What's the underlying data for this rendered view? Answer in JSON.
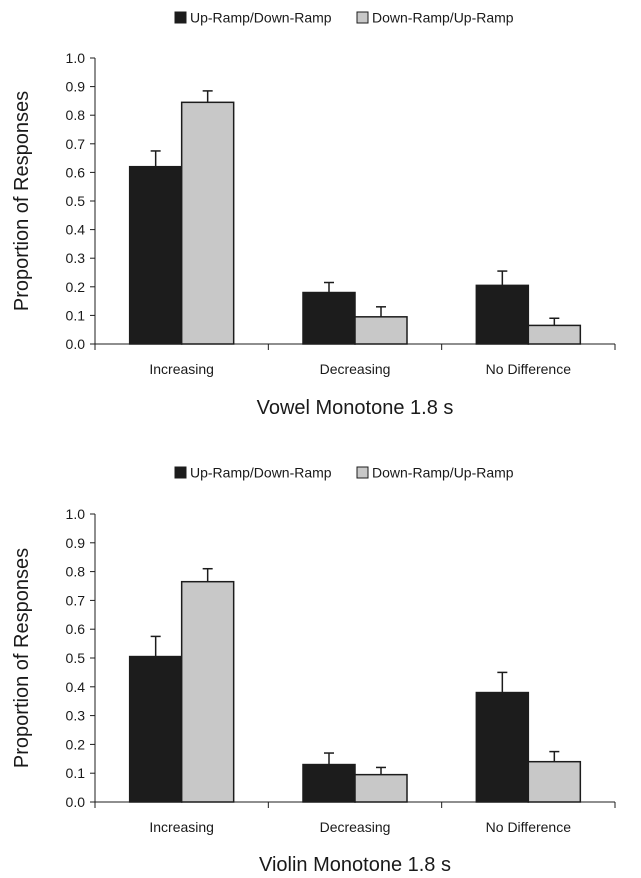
{
  "chart_data": [
    {
      "type": "bar",
      "xlabel": "Vowel Monotone 1.8 s",
      "ylabel": "Proportion of Responses",
      "ylim": [
        0,
        1.0
      ],
      "yticks": [
        "0.0",
        "0.1",
        "0.2",
        "0.3",
        "0.4",
        "0.5",
        "0.6",
        "0.7",
        "0.8",
        "0.9",
        "1.0"
      ],
      "categories": [
        "Increasing",
        "Decreasing",
        "No Difference"
      ],
      "legend_position": "top-center",
      "grid": false,
      "series": [
        {
          "name": "Up-Ramp/Down-Ramp",
          "color": "#1c1c1c",
          "values": [
            0.62,
            0.18,
            0.205
          ],
          "error": [
            0.055,
            0.035,
            0.05
          ]
        },
        {
          "name": "Down-Ramp/Up-Ramp",
          "color": "#c8c8c8",
          "values": [
            0.845,
            0.095,
            0.065
          ],
          "error": [
            0.04,
            0.035,
            0.025
          ]
        }
      ]
    },
    {
      "type": "bar",
      "xlabel": "Violin Monotone 1.8 s",
      "ylabel": "Proportion of Responses",
      "ylim": [
        0,
        1.0
      ],
      "yticks": [
        "0.0",
        "0.1",
        "0.2",
        "0.3",
        "0.4",
        "0.5",
        "0.6",
        "0.7",
        "0.8",
        "0.9",
        "1.0"
      ],
      "categories": [
        "Increasing",
        "Decreasing",
        "No Difference"
      ],
      "legend_position": "top-center",
      "grid": false,
      "series": [
        {
          "name": "Up-Ramp/Down-Ramp",
          "color": "#1c1c1c",
          "values": [
            0.505,
            0.13,
            0.38
          ],
          "error": [
            0.07,
            0.04,
            0.07
          ]
        },
        {
          "name": "Down-Ramp/Up-Ramp",
          "color": "#c8c8c8",
          "values": [
            0.765,
            0.095,
            0.14
          ],
          "error": [
            0.045,
            0.025,
            0.035
          ]
        }
      ]
    }
  ]
}
